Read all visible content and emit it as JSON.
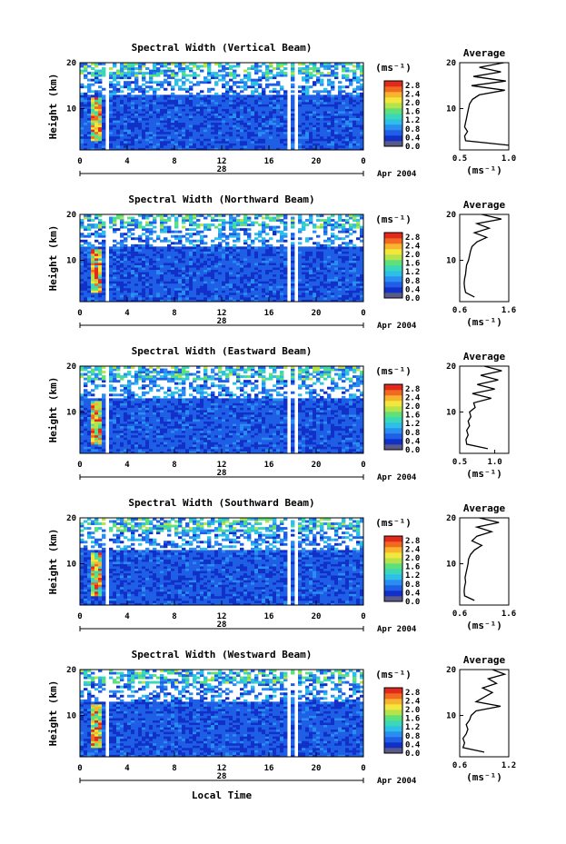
{
  "colors": {
    "background": "#ffffff",
    "axis": "#000000",
    "colorbar": [
      "#5a5a8a",
      "#1030c8",
      "#1f5fe6",
      "#2a8ef0",
      "#2ebfe8",
      "#3ad7b8",
      "#5fe07a",
      "#b7e34a",
      "#f3e63c",
      "#f7b52f",
      "#f26a22",
      "#e22a1c"
    ]
  },
  "common": {
    "y_label": "Height (km)",
    "unit_label": "(ms⁻¹)",
    "date_day": "28",
    "date_label": "Apr 2004",
    "x_label": "Local Time",
    "avg_title": "Average",
    "avg_xlabel": "(ms⁻¹)"
  },
  "chart_data": [
    {
      "type": "heatmap",
      "title": "Spectral Width (Vertical Beam)",
      "x_range": [
        0,
        24
      ],
      "x_ticks": [
        "0",
        "4",
        "8",
        "12",
        "16",
        "20",
        "0"
      ],
      "y_range": [
        1,
        20
      ],
      "y_ticks": [
        "10",
        "20"
      ],
      "colorbar_ticks": [
        "0.0",
        "0.4",
        "0.8",
        "1.2",
        "1.6",
        "2.0",
        "2.4",
        "2.8"
      ],
      "colorbar_range": [
        0,
        3.0
      ],
      "gaps_local_time": [
        [
          2.3,
          2.6
        ],
        [
          17.5,
          17.7
        ],
        [
          18.3,
          18.5
        ]
      ],
      "avg_profile": {
        "xlim": [
          0.5,
          1.0
        ],
        "x_ticks": [
          "0.5",
          "1.0"
        ],
        "height": [
          2,
          3,
          4,
          5,
          6,
          7,
          8,
          9,
          10,
          11,
          12,
          13,
          14,
          15,
          16,
          17,
          18,
          19,
          20
        ],
        "value": [
          1.0,
          0.56,
          0.55,
          0.58,
          0.55,
          0.56,
          0.57,
          0.58,
          0.59,
          0.6,
          0.63,
          0.7,
          0.96,
          0.62,
          0.97,
          0.64,
          0.92,
          0.7,
          0.95
        ]
      }
    },
    {
      "type": "heatmap",
      "title": "Spectral Width (Northward Beam)",
      "x_range": [
        0,
        24
      ],
      "x_ticks": [
        "0",
        "4",
        "8",
        "12",
        "16",
        "20",
        "0"
      ],
      "y_range": [
        1,
        20
      ],
      "y_ticks": [
        "10",
        "20"
      ],
      "colorbar_ticks": [
        "0.0",
        "0.4",
        "0.8",
        "1.2",
        "1.6",
        "2.0",
        "2.4",
        "2.8"
      ],
      "colorbar_range": [
        0,
        3.0
      ],
      "gaps_local_time": [
        [
          2.3,
          2.6
        ],
        [
          17.5,
          17.7
        ],
        [
          18.3,
          18.5
        ]
      ],
      "avg_profile": {
        "xlim": [
          0.6,
          1.6
        ],
        "x_ticks": [
          "0.6",
          "1.6"
        ],
        "height": [
          2,
          3,
          4,
          5,
          6,
          7,
          8,
          9,
          10,
          11,
          12,
          13,
          14,
          15,
          16,
          17,
          18,
          19,
          20
        ],
        "value": [
          0.9,
          0.72,
          0.7,
          0.69,
          0.7,
          0.72,
          0.73,
          0.74,
          0.78,
          0.8,
          0.82,
          0.85,
          0.95,
          1.15,
          0.9,
          1.2,
          0.95,
          1.45,
          1.05
        ]
      }
    },
    {
      "type": "heatmap",
      "title": "Spectral Width (Eastward Beam)",
      "x_range": [
        0,
        24
      ],
      "x_ticks": [
        "0",
        "4",
        "8",
        "12",
        "16",
        "20",
        "0"
      ],
      "y_range": [
        1,
        20
      ],
      "y_ticks": [
        "10",
        "20"
      ],
      "colorbar_ticks": [
        "0.0",
        "0.4",
        "0.8",
        "1.2",
        "1.6",
        "2.0",
        "2.4",
        "2.8"
      ],
      "colorbar_range": [
        0,
        3.0
      ],
      "gaps_local_time": [
        [
          2.3,
          2.6
        ],
        [
          17.5,
          17.7
        ],
        [
          18.3,
          18.5
        ]
      ],
      "avg_profile": {
        "xlim": [
          0.5,
          1.2
        ],
        "x_ticks": [
          "0.5",
          "1.0"
        ],
        "height": [
          2,
          3,
          4,
          5,
          6,
          7,
          8,
          9,
          10,
          11,
          12,
          13,
          14,
          15,
          16,
          17,
          18,
          19,
          20
        ],
        "value": [
          0.9,
          0.6,
          0.59,
          0.62,
          0.6,
          0.64,
          0.62,
          0.66,
          0.64,
          0.72,
          0.7,
          0.95,
          0.68,
          1.0,
          0.75,
          1.05,
          0.8,
          1.1,
          0.85
        ]
      }
    },
    {
      "type": "heatmap",
      "title": "Spectral Width (Southward Beam)",
      "x_range": [
        0,
        24
      ],
      "x_ticks": [
        "0",
        "4",
        "8",
        "12",
        "16",
        "20",
        "0"
      ],
      "y_range": [
        1,
        20
      ],
      "y_ticks": [
        "10",
        "20"
      ],
      "colorbar_ticks": [
        "0.0",
        "0.4",
        "0.8",
        "1.2",
        "1.6",
        "2.0",
        "2.4",
        "2.8"
      ],
      "colorbar_range": [
        0,
        3.0
      ],
      "gaps_local_time": [
        [
          2.3,
          2.6
        ],
        [
          17.5,
          17.7
        ],
        [
          18.3,
          18.5
        ]
      ],
      "avg_profile": {
        "xlim": [
          0.6,
          1.6
        ],
        "x_ticks": [
          "0.6",
          "1.6"
        ],
        "height": [
          2,
          3,
          4,
          5,
          6,
          7,
          8,
          9,
          10,
          11,
          12,
          13,
          14,
          15,
          16,
          17,
          18,
          19,
          20
        ],
        "value": [
          0.9,
          0.7,
          0.69,
          0.7,
          0.72,
          0.71,
          0.73,
          0.75,
          0.77,
          0.78,
          0.82,
          0.9,
          1.05,
          0.85,
          0.95,
          1.25,
          0.95,
          1.4,
          1.0
        ]
      }
    },
    {
      "type": "heatmap",
      "title": "Spectral Width (Westward Beam)",
      "x_range": [
        0,
        24
      ],
      "x_ticks": [
        "0",
        "4",
        "8",
        "12",
        "16",
        "20",
        "0"
      ],
      "y_range": [
        1,
        20
      ],
      "y_ticks": [
        "10",
        "20"
      ],
      "colorbar_ticks": [
        "0.0",
        "0.4",
        "0.8",
        "1.2",
        "1.6",
        "2.0",
        "2.4",
        "2.8"
      ],
      "colorbar_range": [
        0,
        3.0
      ],
      "gaps_local_time": [
        [
          2.3,
          2.6
        ],
        [
          17.5,
          17.7
        ],
        [
          18.3,
          18.5
        ]
      ],
      "avg_profile": {
        "xlim": [
          0.6,
          1.2
        ],
        "x_ticks": [
          "0.6",
          "1.2"
        ],
        "height": [
          2,
          3,
          4,
          5,
          6,
          7,
          8,
          9,
          10,
          11,
          12,
          13,
          14,
          15,
          16,
          17,
          18,
          19,
          20
        ],
        "value": [
          0.9,
          0.64,
          0.66,
          0.64,
          0.68,
          0.7,
          0.68,
          0.72,
          0.74,
          0.8,
          1.1,
          0.8,
          0.9,
          1.0,
          0.88,
          1.05,
          0.95,
          1.15,
          1.0
        ]
      }
    }
  ]
}
